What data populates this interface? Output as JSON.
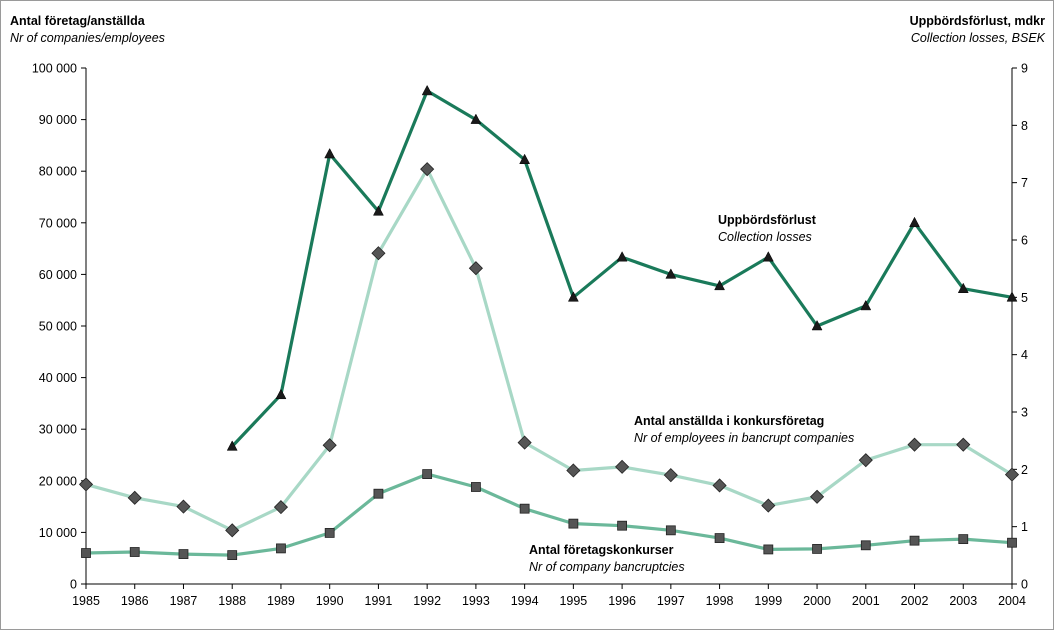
{
  "chart_data": {
    "type": "line",
    "x": [
      "1985",
      "1986",
      "1987",
      "1988",
      "1989",
      "1990",
      "1991",
      "1992",
      "1993",
      "1994",
      "1995",
      "1996",
      "1997",
      "1998",
      "1999",
      "2000",
      "2001",
      "2002",
      "2003",
      "2004"
    ],
    "left_axis": {
      "title": "Antal företag/anställda",
      "subtitle": "Nr of companies/employees",
      "ylim": [
        0,
        100000
      ],
      "ticks": [
        "0",
        "10 000",
        "20 000",
        "30 000",
        "40 000",
        "50 000",
        "60 000",
        "70 000",
        "80 000",
        "90 000",
        "100 000"
      ]
    },
    "right_axis": {
      "title": "Uppbördsförlust, mdkr",
      "subtitle": "Collection losses, BSEK",
      "ylim": [
        0,
        9
      ],
      "ticks": [
        "0",
        "1",
        "2",
        "3",
        "4",
        "5",
        "6",
        "7",
        "8",
        "9"
      ]
    },
    "series": [
      {
        "name": "Uppbördsförlust",
        "name_en": "Collection losses",
        "axis": "right",
        "color": "#1a7a5a",
        "marker": "triangle",
        "values": [
          null,
          null,
          null,
          2.4,
          3.3,
          7.5,
          6.5,
          8.6,
          8.1,
          7.4,
          5.0,
          5.7,
          5.4,
          5.2,
          5.7,
          4.5,
          4.85,
          6.3,
          5.15,
          5.0
        ]
      },
      {
        "name": "Antal anställda i konkursföretag",
        "name_en": "Nr of employees in bancrupt companies",
        "axis": "left",
        "color": "#a8d8c6",
        "marker": "diamond",
        "values": [
          19300,
          16700,
          15000,
          10400,
          14900,
          26900,
          64100,
          80400,
          61200,
          27400,
          22000,
          22700,
          21100,
          19100,
          15200,
          16900,
          24000,
          27000,
          27000,
          21200
        ]
      },
      {
        "name": "Antal företagskonkurser",
        "name_en": "Nr of company bancruptcies",
        "axis": "left",
        "color": "#6bb89a",
        "marker": "square",
        "values": [
          6000,
          6200,
          5800,
          5600,
          6900,
          9900,
          17500,
          21300,
          18800,
          14600,
          11700,
          11300,
          10400,
          8900,
          6700,
          6800,
          7500,
          8400,
          8700,
          8000
        ]
      }
    ],
    "grid": false,
    "legend": "inline labels"
  }
}
